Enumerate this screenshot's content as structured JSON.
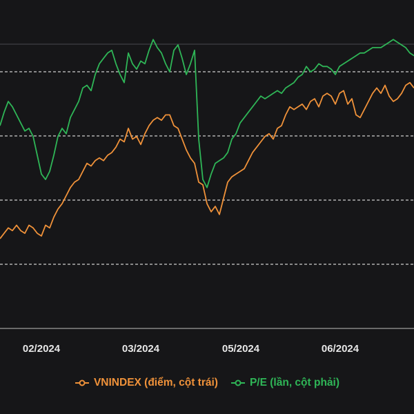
{
  "colors": {
    "background": "#161618",
    "grid": "#cfcfcf",
    "border": "#4a4a4f",
    "vnindex": "#f0923a",
    "pe": "#2fb657"
  },
  "legend": {
    "vnindex_label": "VNINDEX (điểm, cột trái)",
    "pe_label": "P/E (lần, cột phải)"
  },
  "chart_data": {
    "type": "line",
    "x_ticks": [
      "02/2024",
      "03/2024",
      "05/2024",
      "06/2024"
    ],
    "grid": true,
    "legend_position": "bottom",
    "ylim": [
      0,
      100
    ],
    "series": [
      {
        "name": "VNINDEX (điểm, cột trái)",
        "color": "#f0923a",
        "x": [
          0,
          2,
          4,
          6,
          8,
          10,
          12,
          14,
          16,
          18,
          20,
          22,
          24,
          26,
          28,
          30,
          32,
          34,
          36,
          38,
          40,
          42,
          44,
          46,
          48,
          50,
          52,
          54,
          56,
          58,
          60,
          62,
          64,
          66,
          68,
          70,
          72,
          74,
          76,
          78,
          80,
          82,
          84,
          86,
          88,
          90,
          92,
          94,
          96,
          98,
          100,
          102,
          104,
          106,
          108,
          110,
          112,
          114,
          116,
          118,
          120,
          122,
          124,
          126,
          128,
          130,
          132,
          134,
          136,
          138,
          140,
          142,
          144,
          146,
          148,
          150,
          152,
          154,
          156,
          158,
          160,
          162,
          164,
          166,
          168,
          170,
          172,
          174,
          176,
          178,
          180,
          182,
          184,
          186,
          188,
          190,
          192,
          194,
          196,
          198,
          200
        ],
        "values": [
          19,
          21,
          23,
          22,
          24,
          22,
          21,
          24,
          23,
          21,
          20,
          24,
          23,
          27,
          30,
          32,
          35,
          38,
          40,
          41,
          44,
          47,
          46,
          48,
          49,
          48,
          50,
          51,
          53,
          56,
          55,
          60,
          56,
          57,
          54,
          58,
          61,
          63,
          64,
          63,
          65,
          65,
          61,
          60,
          56,
          52,
          49,
          47,
          40,
          39,
          32,
          29,
          31,
          28,
          34,
          40,
          42,
          43,
          44,
          45,
          48,
          51,
          53,
          55,
          57,
          58,
          56,
          60,
          61,
          65,
          68,
          67,
          68,
          69,
          67,
          70,
          71,
          68,
          72,
          73,
          72,
          69,
          73,
          74,
          69,
          71,
          65,
          64,
          67,
          70,
          73,
          75,
          73,
          76,
          72,
          70,
          71,
          73,
          76,
          77,
          75
        ]
      },
      {
        "name": "P/E (lần, cột phải)",
        "color": "#2fb657",
        "x": [
          0,
          2,
          4,
          6,
          8,
          10,
          12,
          14,
          16,
          18,
          20,
          22,
          24,
          26,
          28,
          30,
          32,
          34,
          36,
          38,
          40,
          42,
          44,
          46,
          48,
          50,
          52,
          54,
          56,
          58,
          60,
          62,
          64,
          66,
          68,
          70,
          72,
          74,
          76,
          78,
          80,
          82,
          84,
          86,
          88,
          90,
          92,
          94,
          96,
          98,
          100,
          102,
          104,
          106,
          108,
          110,
          112,
          114,
          116,
          118,
          120,
          122,
          124,
          126,
          128,
          130,
          132,
          134,
          136,
          138,
          140,
          142,
          144,
          146,
          148,
          150,
          152,
          154,
          156,
          158,
          160,
          162,
          164,
          166,
          168,
          170,
          172,
          174,
          176,
          178,
          180,
          182,
          184,
          186,
          188,
          190,
          192,
          194,
          196,
          198,
          200
        ],
        "values": [
          61,
          66,
          70,
          68,
          65,
          62,
          59,
          60,
          57,
          50,
          43,
          41,
          44,
          50,
          57,
          60,
          58,
          64,
          67,
          70,
          75,
          76,
          74,
          80,
          84,
          86,
          88,
          89,
          84,
          80,
          77,
          88,
          84,
          82,
          85,
          84,
          89,
          93,
          90,
          88,
          84,
          81,
          89,
          91,
          86,
          80,
          84,
          89,
          56,
          41,
          38,
          43,
          47,
          48,
          49,
          51,
          56,
          58,
          62,
          64,
          66,
          68,
          70,
          72,
          71,
          72,
          73,
          74,
          73,
          75,
          76,
          77,
          79,
          80,
          83,
          81,
          82,
          84,
          83,
          83,
          82,
          80,
          83,
          84,
          85,
          86,
          87,
          88,
          88,
          89,
          90,
          90,
          90,
          91,
          92,
          93,
          92,
          91,
          90,
          88,
          87
        ]
      }
    ]
  }
}
